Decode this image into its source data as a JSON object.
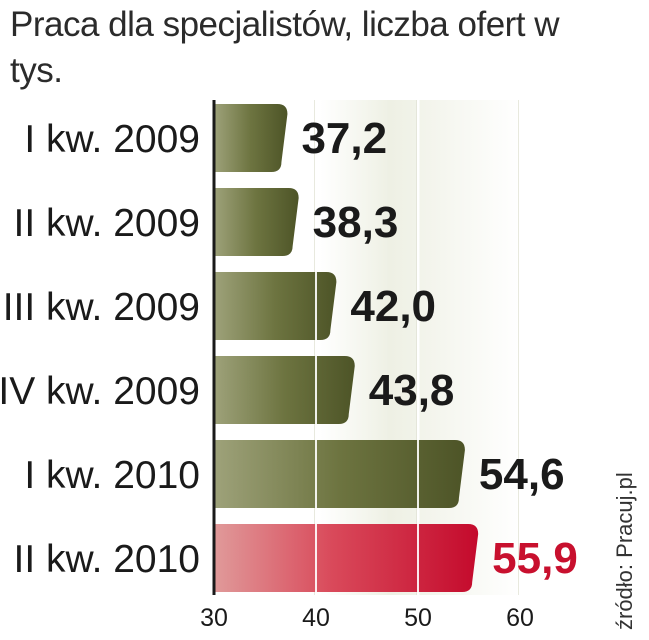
{
  "title": "Praca dla specjalistów, liczba ofert w tys.",
  "source": "źródło: Pracuj.pl",
  "chart_data": {
    "type": "bar",
    "orientation": "horizontal",
    "title": "Praca dla specjalistów, liczba ofert w tys.",
    "categories": [
      "I kw. 2009",
      "II kw. 2009",
      "III kw. 2009",
      "IV kw. 2009",
      "I kw. 2010",
      "II kw. 2010"
    ],
    "values": [
      37.2,
      38.3,
      42.0,
      43.8,
      54.6,
      55.9
    ],
    "value_labels": [
      "37,2",
      "38,3",
      "42,0",
      "43,8",
      "54,6",
      "55,9"
    ],
    "xlim": [
      30,
      60
    ],
    "xticks": [
      30,
      40,
      50,
      60
    ],
    "xtick_labels": [
      "30",
      "40",
      "50",
      "60"
    ],
    "grid": true,
    "colors": {
      "default_bar": "#5c6330",
      "highlight_bar": "#c8102e",
      "default_label": "#1a1a1a",
      "highlight_label": "#c8102e"
    },
    "highlight_index": 5
  }
}
